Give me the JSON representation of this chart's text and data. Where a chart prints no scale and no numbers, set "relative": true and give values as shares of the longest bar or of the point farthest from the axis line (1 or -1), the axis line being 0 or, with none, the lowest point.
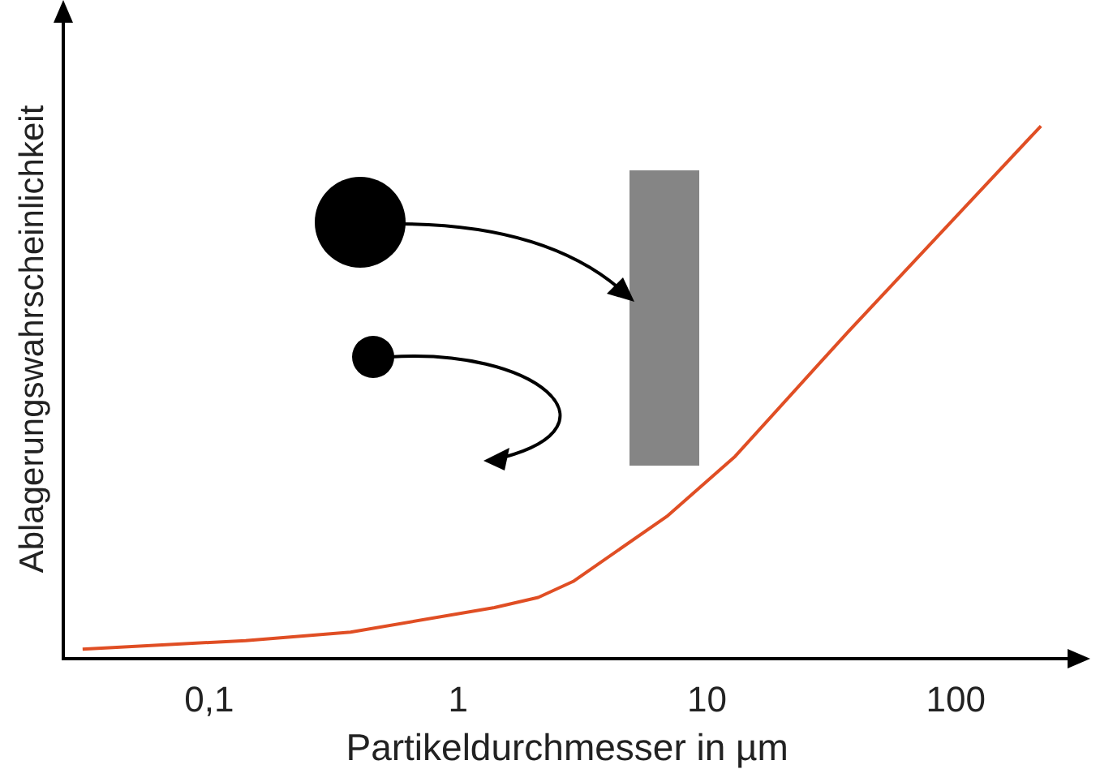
{
  "chart_data": {
    "type": "line",
    "xlabel": "Partikeldurchmesser in µm",
    "ylabel": "Ablagerungswahrscheinlichkeit",
    "relative": true,
    "log": "x",
    "grid": false,
    "legend": false,
    "marker": "none",
    "xlim": [
      0.026,
      290
    ],
    "xticks": [
      {
        "value": 0.1,
        "label": "0,1"
      },
      1,
      10,
      100
    ],
    "series": [
      {
        "color": "#e04e24",
        "x": [
          0.031,
          0.14,
          0.37,
          1.4,
          2.1,
          2.9,
          6.9,
          13,
          37,
          220
        ],
        "values": [
          0.018,
          0.034,
          0.05,
          0.096,
          0.115,
          0.145,
          0.267,
          0.38,
          0.614,
          1
        ]
      }
    ]
  }
}
